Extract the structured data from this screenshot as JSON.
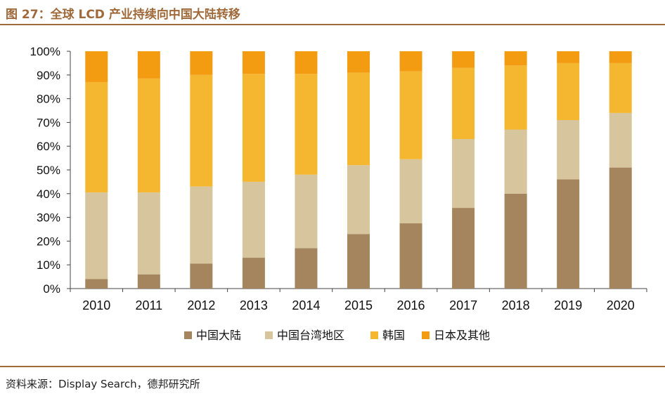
{
  "title": "图 27：全球 LCD 产业持续向中国大陆转移",
  "source": "资料来源：Display Search，德邦研究所",
  "chart_data": {
    "type": "bar",
    "stacked": true,
    "categories": [
      "2010",
      "2011",
      "2012",
      "2013",
      "2014",
      "2015",
      "2016",
      "2017",
      "2018",
      "2019",
      "2020"
    ],
    "series": [
      {
        "name": "中国大陆",
        "color": "#a5855e",
        "values": [
          4,
          6,
          10.5,
          13,
          17,
          23,
          27.5,
          34,
          40,
          46,
          51
        ]
      },
      {
        "name": "中国台湾地区",
        "color": "#d6c59d",
        "values": [
          36.5,
          34.5,
          32.5,
          32,
          31,
          29,
          27,
          29,
          27,
          25,
          23
        ]
      },
      {
        "name": "韩国",
        "color": "#f5b630",
        "values": [
          46.5,
          48,
          47,
          45.5,
          42.5,
          39,
          37,
          30,
          27,
          24,
          21
        ]
      },
      {
        "name": "日本及其他",
        "color": "#f39c12",
        "values": [
          13,
          11.5,
          10,
          9.5,
          9.5,
          9,
          8.5,
          7,
          6,
          5,
          5
        ]
      }
    ],
    "ylim": [
      0,
      100
    ],
    "yticks": [
      "0%",
      "10%",
      "20%",
      "30%",
      "40%",
      "50%",
      "60%",
      "70%",
      "80%",
      "90%",
      "100%"
    ],
    "legend_position": "bottom-center",
    "grid": false,
    "xlabel": "",
    "ylabel": ""
  }
}
